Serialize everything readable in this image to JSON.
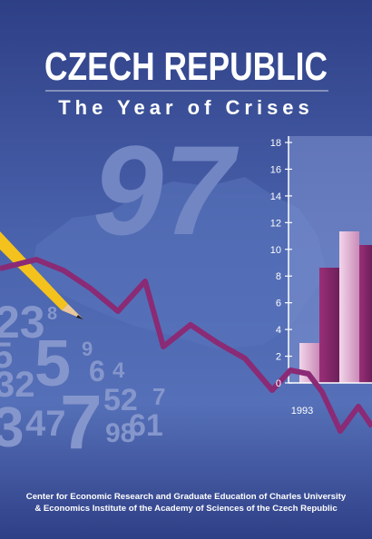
{
  "cover": {
    "title": "CZECH REPUBLIC",
    "subtitle": "The Year of Crises",
    "year": "97",
    "axis": {
      "ticks": [
        0,
        2,
        4,
        6,
        8,
        10,
        12,
        14,
        16,
        18
      ],
      "category": "1993"
    },
    "digits": [
      "23",
      "8",
      "5",
      "5",
      "9",
      "6",
      "4",
      "32",
      "52",
      "7",
      "3",
      "47",
      "7",
      "98",
      "61"
    ],
    "publisher": [
      "Center for Economic Research and Graduate Education of Charles University",
      "& Economics Institute of the Academy of Sciences of the Czech Republic"
    ]
  }
}
